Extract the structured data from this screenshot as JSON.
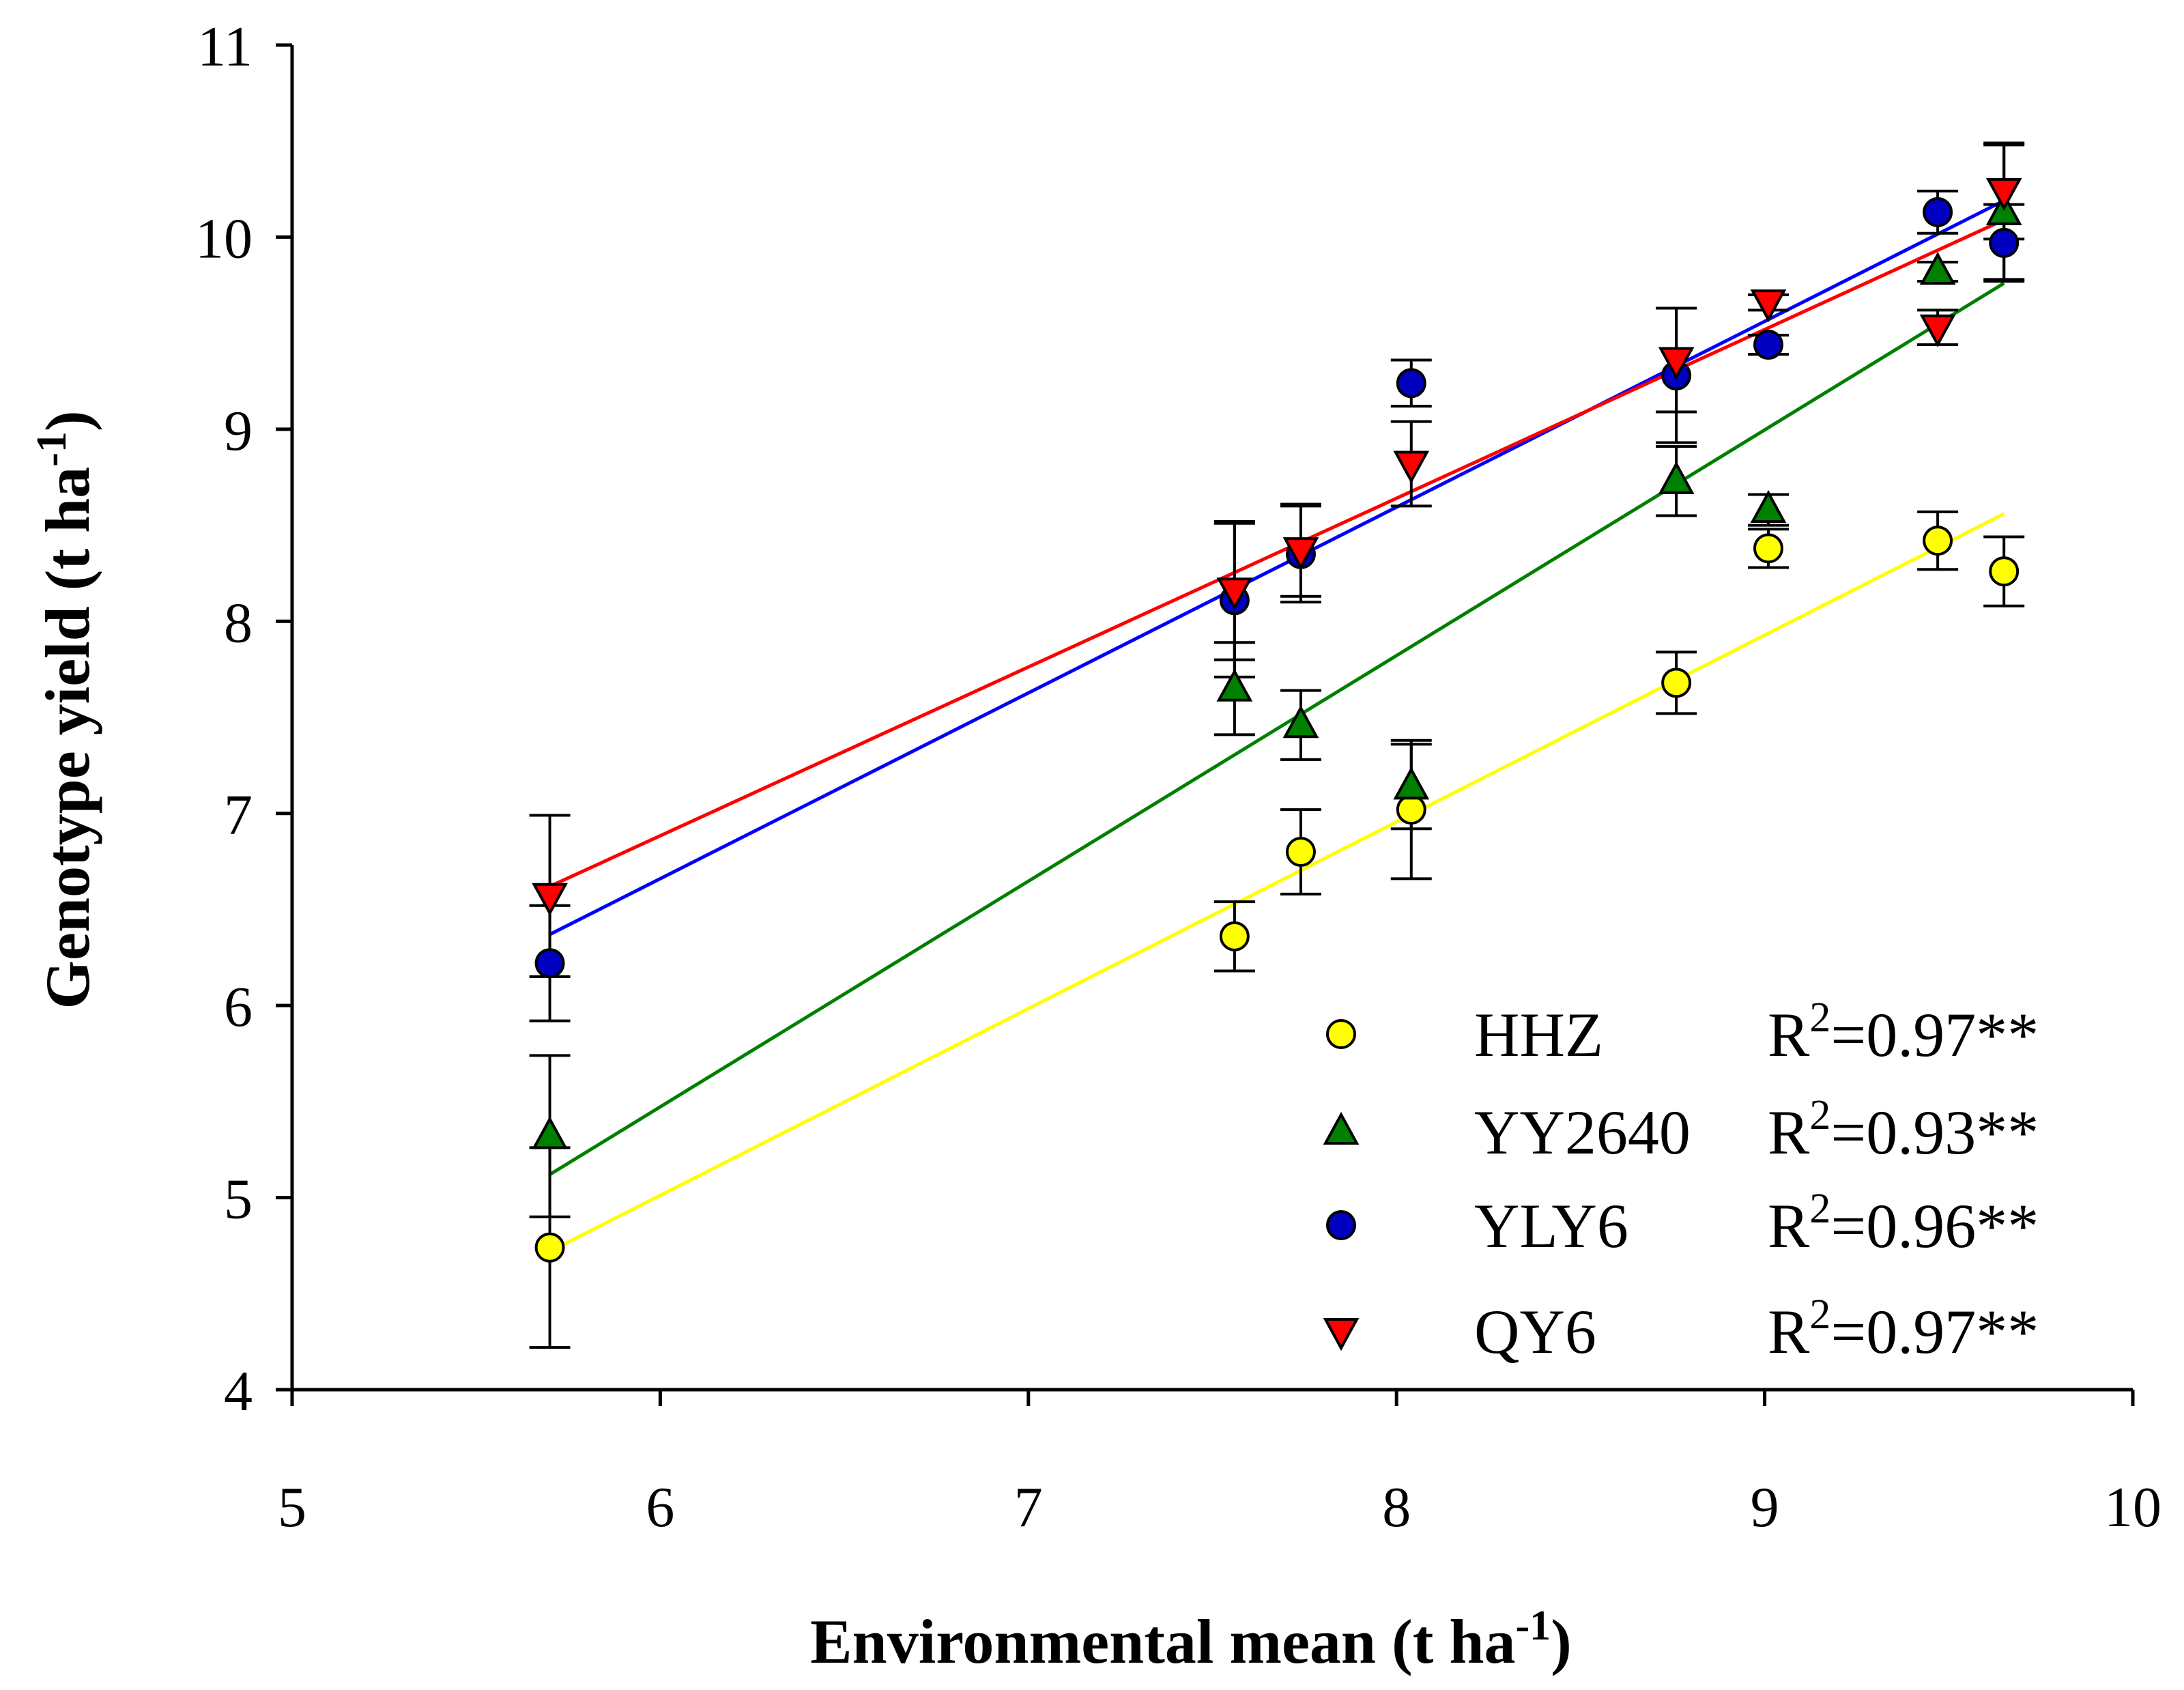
{
  "chart_data": {
    "type": "scatter",
    "title": "",
    "xlabel": "Environmental mean (t ha",
    "xlabel_sup": "-1",
    "xlabel_tail": ")",
    "ylabel": "Genotype yield (t ha",
    "ylabel_sup": "-1",
    "ylabel_tail": ")",
    "xlim": [
      5,
      10
    ],
    "ylim": [
      4,
      11
    ],
    "xticks": [
      5,
      6,
      7,
      8,
      9,
      10
    ],
    "yticks": [
      4,
      5,
      6,
      7,
      8,
      9,
      10,
      11
    ],
    "grid": false,
    "legend_position": "bottom-right",
    "x": [
      5.7,
      7.56,
      7.74,
      8.04,
      8.76,
      9.01,
      9.47,
      9.65
    ],
    "series": [
      {
        "name": "HHZ",
        "marker": "circle",
        "color": "#ffff00",
        "line_color": "#ffff00",
        "r2_prefix": "R",
        "r2_sup": "2",
        "r2_value": "=0.97**",
        "values": [
          4.74,
          6.36,
          6.8,
          7.02,
          7.68,
          8.38,
          8.42,
          8.26
        ],
        "errors": [
          0.52,
          0.18,
          0.22,
          0.36,
          0.16,
          0.1,
          0.15,
          0.18
        ],
        "fit": {
          "x0": 5.7,
          "y0": 4.72,
          "x1": 9.65,
          "y1": 8.56
        }
      },
      {
        "name": "YY2640",
        "marker": "triangle-up",
        "color": "#008000",
        "line_color": "#008000",
        "r2_prefix": "R",
        "r2_sup": "2",
        "r2_value": "=0.93**",
        "values": [
          5.32,
          7.65,
          7.46,
          7.14,
          8.73,
          8.58,
          9.82,
          10.13
        ],
        "errors": [
          0.42,
          0.24,
          0.18,
          0.22,
          0.18,
          0.08,
          0.05,
          0.35
        ],
        "fit": {
          "x0": 5.7,
          "y0": 5.12,
          "x1": 9.65,
          "y1": 9.76
        }
      },
      {
        "name": "YLY6",
        "marker": "circle",
        "color": "#0000c0",
        "line_color": "#0000ff",
        "r2_prefix": "R",
        "r2_sup": "2",
        "r2_value": "=0.96**",
        "values": [
          6.22,
          8.11,
          8.35,
          9.24,
          9.28,
          9.44,
          10.13,
          9.97
        ],
        "errors": [
          0.3,
          0.4,
          0.25,
          0.12,
          0.35,
          0.05,
          0.11,
          0.2
        ],
        "fit": {
          "x0": 5.7,
          "y0": 6.37,
          "x1": 9.65,
          "y1": 10.19
        }
      },
      {
        "name": "QY6",
        "marker": "triangle-down",
        "color": "#ff0000",
        "line_color": "#ff0000",
        "r2_prefix": "R",
        "r2_sup": "2",
        "r2_value": "=0.97**",
        "values": [
          6.57,
          8.16,
          8.37,
          8.82,
          9.36,
          9.66,
          9.53,
          10.24
        ],
        "errors": [
          0.42,
          0.36,
          0.24,
          0.22,
          0.27,
          0.04,
          0.09,
          0.25
        ],
        "fit": {
          "x0": 5.7,
          "y0": 6.62,
          "x1": 9.65,
          "y1": 10.09
        }
      }
    ]
  }
}
